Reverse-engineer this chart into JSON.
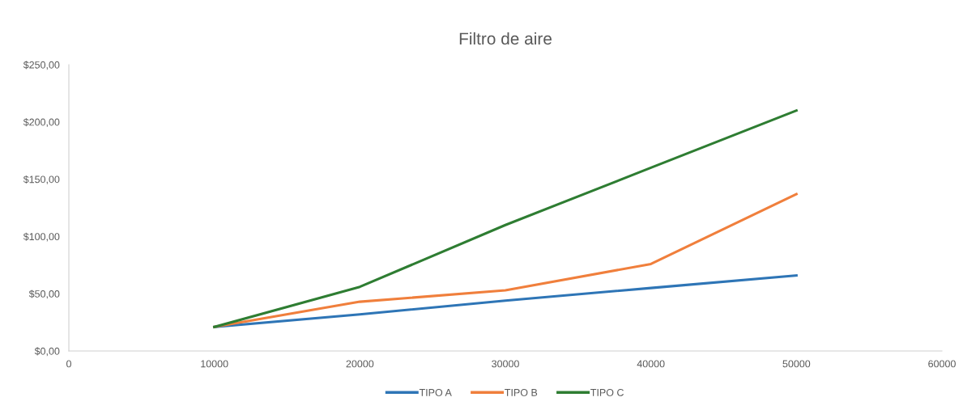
{
  "chart_data": {
    "type": "line",
    "title": "Filtro de aire",
    "x": [
      10000,
      20000,
      30000,
      40000,
      50000
    ],
    "series": [
      {
        "name": "TIPO A",
        "color": "#2e75b6",
        "values": [
          21,
          32,
          44,
          55,
          66
        ]
      },
      {
        "name": "TIPO B",
        "color": "#f07f3c",
        "values": [
          21,
          43,
          53,
          76,
          137
        ]
      },
      {
        "name": "TIPO C",
        "color": "#2e7d32",
        "values": [
          21,
          56,
          110,
          160,
          210
        ]
      }
    ],
    "xlim": [
      0,
      60000
    ],
    "xticks": [
      0,
      10000,
      20000,
      30000,
      40000,
      50000,
      60000
    ],
    "ylim": [
      0,
      250
    ],
    "yticks": [
      {
        "value": 0,
        "label": "$0,00"
      },
      {
        "value": 50,
        "label": "$50,00"
      },
      {
        "value": 100,
        "label": "$100,00"
      },
      {
        "value": 150,
        "label": "$150,00"
      },
      {
        "value": 200,
        "label": "$200,00"
      },
      {
        "value": 250,
        "label": "$250,00"
      }
    ],
    "grid": false,
    "legend": "bottom",
    "marker": "none",
    "line_style": "solid"
  }
}
